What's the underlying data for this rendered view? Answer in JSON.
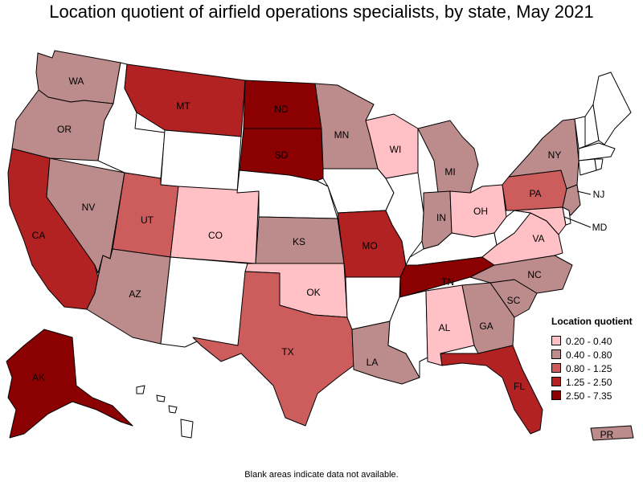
{
  "title": "Location quotient of airfield operations specialists, by state, May 2021",
  "note": "Blank areas indicate data not available.",
  "legend": {
    "title": "Location quotient",
    "items": [
      {
        "label": "0.20 - 0.40",
        "color": "#ffc0c6"
      },
      {
        "label": "0.40 - 0.80",
        "color": "#bc8c8c"
      },
      {
        "label": "0.80 - 1.25",
        "color": "#cd5c5c"
      },
      {
        "label": "1.25 - 2.50",
        "color": "#b22222"
      },
      {
        "label": "2.50 - 7.35",
        "color": "#8b0000"
      }
    ]
  },
  "colors": {
    "na": "#ffffff"
  },
  "states": [
    {
      "abbr": "WA",
      "bin": 1
    },
    {
      "abbr": "OR",
      "bin": 1
    },
    {
      "abbr": "CA",
      "bin": 3
    },
    {
      "abbr": "NV",
      "bin": 1
    },
    {
      "abbr": "ID",
      "bin": null
    },
    {
      "abbr": "MT",
      "bin": 3
    },
    {
      "abbr": "WY",
      "bin": null
    },
    {
      "abbr": "UT",
      "bin": 2
    },
    {
      "abbr": "AZ",
      "bin": 1
    },
    {
      "abbr": "CO",
      "bin": 0
    },
    {
      "abbr": "NM",
      "bin": null
    },
    {
      "abbr": "ND",
      "bin": 4
    },
    {
      "abbr": "SD",
      "bin": 4
    },
    {
      "abbr": "NE",
      "bin": null
    },
    {
      "abbr": "KS",
      "bin": 1
    },
    {
      "abbr": "OK",
      "bin": 0
    },
    {
      "abbr": "TX",
      "bin": 2
    },
    {
      "abbr": "MN",
      "bin": 1
    },
    {
      "abbr": "IA",
      "bin": null
    },
    {
      "abbr": "MO",
      "bin": 3
    },
    {
      "abbr": "AR",
      "bin": null
    },
    {
      "abbr": "LA",
      "bin": 1
    },
    {
      "abbr": "WI",
      "bin": 0
    },
    {
      "abbr": "IL",
      "bin": null
    },
    {
      "abbr": "MI",
      "bin": 1
    },
    {
      "abbr": "IN",
      "bin": 1
    },
    {
      "abbr": "OH",
      "bin": 0
    },
    {
      "abbr": "KY",
      "bin": null
    },
    {
      "abbr": "TN",
      "bin": 4
    },
    {
      "abbr": "MS",
      "bin": null
    },
    {
      "abbr": "AL",
      "bin": 0
    },
    {
      "abbr": "GA",
      "bin": 1
    },
    {
      "abbr": "FL",
      "bin": 3
    },
    {
      "abbr": "SC",
      "bin": 1
    },
    {
      "abbr": "NC",
      "bin": 1
    },
    {
      "abbr": "VA",
      "bin": 0
    },
    {
      "abbr": "WV",
      "bin": null
    },
    {
      "abbr": "PA",
      "bin": 2
    },
    {
      "abbr": "NY",
      "bin": 1
    },
    {
      "abbr": "NJ",
      "bin": 1
    },
    {
      "abbr": "MD",
      "bin": 0
    },
    {
      "abbr": "DE",
      "bin": null
    },
    {
      "abbr": "VT",
      "bin": null
    },
    {
      "abbr": "NH",
      "bin": null
    },
    {
      "abbr": "ME",
      "bin": null
    },
    {
      "abbr": "MA",
      "bin": null
    },
    {
      "abbr": "CT",
      "bin": null
    },
    {
      "abbr": "RI",
      "bin": null
    },
    {
      "abbr": "AK",
      "bin": 4
    },
    {
      "abbr": "HI",
      "bin": null
    },
    {
      "abbr": "PR",
      "bin": 1
    }
  ]
}
